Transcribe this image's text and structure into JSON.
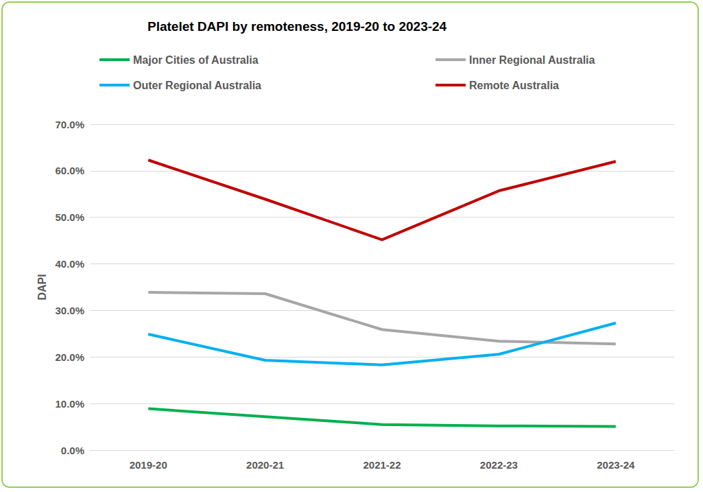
{
  "chart_data": {
    "type": "line",
    "title": "Platelet DAPI by remoteness, 2019-20 to 2023-24",
    "y_label": "DAPI",
    "categories": [
      "2019-20",
      "2020-21",
      "2021-22",
      "2022-23",
      "2023-24"
    ],
    "series": [
      {
        "name": "Major Cities of Australia",
        "color": "#00b050",
        "values": [
          8.9,
          7.2,
          5.5,
          5.2,
          5.1
        ]
      },
      {
        "name": "Inner Regional Australia",
        "color": "#a6a6a6",
        "values": [
          33.9,
          33.6,
          25.9,
          23.4,
          22.8
        ]
      },
      {
        "name": "Outer Regional Australia",
        "color": "#00b0f0",
        "values": [
          24.9,
          19.3,
          18.3,
          20.6,
          27.3
        ]
      },
      {
        "name": "Remote Australia",
        "color": "#c00000",
        "values": [
          62.3,
          53.9,
          45.2,
          55.7,
          62.0
        ]
      }
    ],
    "ylim": [
      0,
      70
    ],
    "yticks": [
      {
        "value": 0,
        "label": "0.0%"
      },
      {
        "value": 10,
        "label": "10.0%"
      },
      {
        "value": 20,
        "label": "20.0%"
      },
      {
        "value": 30,
        "label": "30.0%"
      },
      {
        "value": 40,
        "label": "40.0%"
      },
      {
        "value": 50,
        "label": "50.0%"
      },
      {
        "value": 60,
        "label": "60.0%"
      },
      {
        "value": 70,
        "label": "70.0%"
      }
    ],
    "grid": true,
    "legend": "top"
  }
}
